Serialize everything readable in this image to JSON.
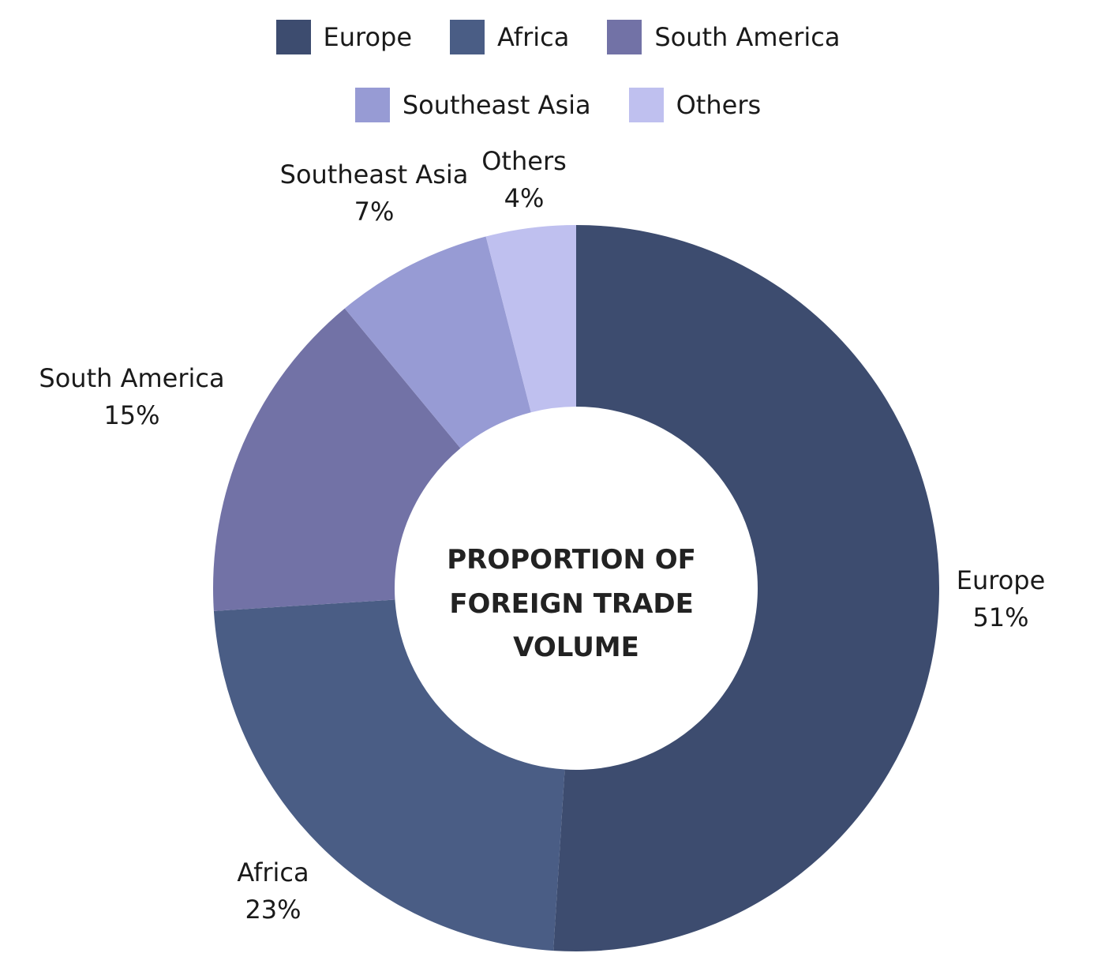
{
  "chart_data": {
    "type": "pie",
    "style": "donut",
    "title": "PROPORTION OF FOREIGN TRADE VOLUME",
    "title_lines": [
      "PROPORTION OF",
      "FOREIGN TRADE",
      "VOLUME"
    ],
    "legend_position": "top",
    "categories": [
      "Europe",
      "Africa",
      "South America",
      "Southeast Asia",
      "Others"
    ],
    "values": [
      51,
      23,
      15,
      7,
      4
    ],
    "value_labels": [
      "51%",
      "23%",
      "15%",
      "7%",
      "4%"
    ],
    "colors": [
      "#3d4c6f",
      "#4a5d85",
      "#7272a6",
      "#979bd4",
      "#bfc0ef"
    ]
  },
  "legend": {
    "row1": [
      {
        "label": "Europe",
        "color": "#3d4c6f"
      },
      {
        "label": "Africa",
        "color": "#4a5d85"
      },
      {
        "label": "South America",
        "color": "#7272a6"
      }
    ],
    "row2": [
      {
        "label": "Southeast Asia",
        "color": "#979bd4"
      },
      {
        "label": "Others",
        "color": "#bfc0ef"
      }
    ]
  }
}
